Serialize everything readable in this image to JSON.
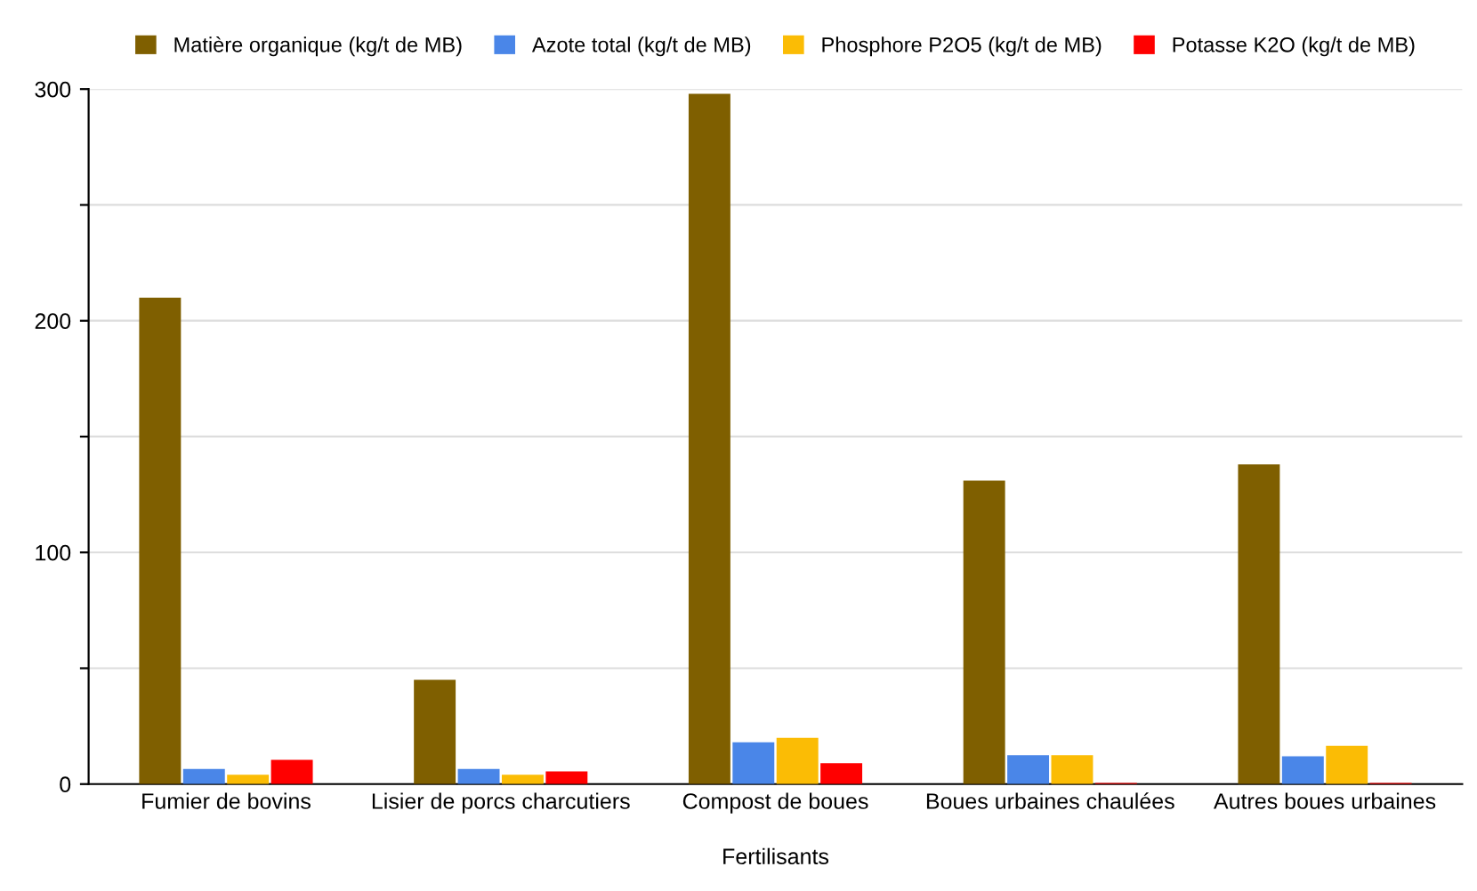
{
  "chart_data": {
    "type": "bar",
    "xlabel": "Fertilisants",
    "categories": [
      "Fumier de bovins",
      "Lisier de porcs charcutiers",
      "Compost de boues",
      "Boues urbaines chaulées",
      "Autres boues urbaines"
    ],
    "series": [
      {
        "name": "Matière organique (kg/t de MB)",
        "color": "#7f5f00",
        "values": [
          210,
          45,
          298,
          131,
          138
        ]
      },
      {
        "name": "Azote total (kg/t de MB)",
        "color": "#4a86e8",
        "values": [
          6.5,
          6.5,
          18,
          12.5,
          12
        ]
      },
      {
        "name": "Phosphore P2O5 (kg/t de MB)",
        "color": "#fbbc05",
        "values": [
          4,
          4,
          20,
          12.5,
          16.5
        ]
      },
      {
        "name": "Potasse K2O (kg/t de MB)",
        "color": "#ff0000",
        "values": [
          10.5,
          5.5,
          9,
          0.5,
          0.5
        ]
      }
    ],
    "ylim": [
      0,
      300
    ],
    "yticks": [
      0,
      {
        "value": 50,
        "label": null
      },
      100,
      {
        "value": 150,
        "label": null
      },
      200,
      {
        "value": 250,
        "label": null
      },
      300
    ],
    "grid": "y",
    "legend": "top"
  }
}
